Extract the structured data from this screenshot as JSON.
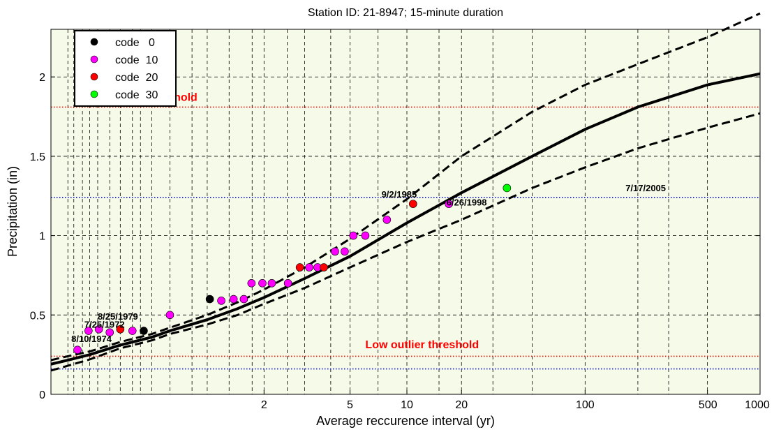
{
  "chart_data": {
    "type": "scatter",
    "title": "Station  ID: 21-8947; 15-minute duration",
    "xlabel": "Average reccurence interval (yr)",
    "ylabel": "Precipitation (in)",
    "xscale": "gumbel-probability",
    "xlim": [
      1.00001,
      1000
    ],
    "ylim": [
      0,
      2.3
    ],
    "grid": true,
    "legend_position": "top-left",
    "background": "#f5fbe8",
    "x_ticks": [
      {
        "value": 2,
        "label": "2"
      },
      {
        "value": 5,
        "label": "5"
      },
      {
        "value": 10,
        "label": "10"
      },
      {
        "value": 20,
        "label": "20"
      },
      {
        "value": 100,
        "label": "100"
      },
      {
        "value": 500,
        "label": "500"
      },
      {
        "value": 1000,
        "label": "1000"
      }
    ],
    "x_minor_grid": [
      1.0001,
      1.0002,
      1.0005,
      1.001,
      1.002,
      1.005,
      1.01,
      1.02,
      1.03,
      1.05,
      1.1,
      1.2,
      1.3,
      1.5,
      1.8,
      2,
      2.5,
      3,
      4,
      5,
      7,
      10,
      15,
      20,
      30,
      50,
      100,
      200,
      300,
      500,
      1000
    ],
    "y_ticks": [
      {
        "value": 0,
        "label": "0"
      },
      {
        "value": 0.5,
        "label": "0.5"
      },
      {
        "value": 1,
        "label": "1"
      },
      {
        "value": 1.5,
        "label": "1.5"
      },
      {
        "value": 2,
        "label": "2"
      }
    ],
    "legend": [
      {
        "label": "code   0",
        "color": "#000000"
      },
      {
        "label": "code  10",
        "color": "#ff00ff"
      },
      {
        "label": "code  20",
        "color": "#ff0000"
      },
      {
        "label": "code  30",
        "color": "#00ff00"
      }
    ],
    "thresholds": [
      {
        "label": "High outlier threshold",
        "y": 1.81,
        "color": "#ff0000",
        "label_x": 1.00045,
        "label_y": 1.85
      },
      {
        "label": "",
        "y": 1.24,
        "color": "#0000ff"
      },
      {
        "label": "Low outlier threshold",
        "y": 0.24,
        "color": "#ff0000",
        "label_x": 6,
        "label_y": 0.29
      },
      {
        "label": "",
        "y": 0.16,
        "color": "#0000ff"
      }
    ],
    "fit_curve": {
      "x": [
        1.00001,
        1.0001,
        1.001,
        1.01,
        1.05,
        1.1,
        1.3,
        1.6,
        2,
        3,
        5,
        10,
        20,
        50,
        100,
        200,
        500,
        1000
      ],
      "y": [
        0.19,
        0.215,
        0.25,
        0.31,
        0.36,
        0.4,
        0.47,
        0.54,
        0.61,
        0.73,
        0.87,
        1.08,
        1.27,
        1.5,
        1.67,
        1.81,
        1.95,
        2.02
      ]
    },
    "upper_bound": {
      "x": [
        1.00001,
        1.0001,
        1.001,
        1.01,
        1.05,
        1.1,
        1.3,
        1.6,
        2,
        3,
        5,
        10,
        20,
        50,
        100,
        200,
        500,
        1000
      ],
      "y": [
        0.215,
        0.24,
        0.27,
        0.33,
        0.38,
        0.42,
        0.5,
        0.58,
        0.66,
        0.8,
        0.98,
        1.23,
        1.5,
        1.78,
        1.95,
        2.08,
        2.25,
        2.4
      ]
    },
    "lower_bound": {
      "x": [
        1.00001,
        1.0001,
        1.001,
        1.01,
        1.05,
        1.1,
        1.3,
        1.6,
        2,
        3,
        5,
        10,
        20,
        50,
        100,
        200,
        500,
        1000
      ],
      "y": [
        0.15,
        0.18,
        0.22,
        0.29,
        0.34,
        0.38,
        0.44,
        0.5,
        0.57,
        0.67,
        0.8,
        0.96,
        1.1,
        1.3,
        1.43,
        1.55,
        1.68,
        1.77
      ]
    },
    "points": [
      {
        "x": 1.0003,
        "y": 0.28,
        "code": 10
      },
      {
        "x": 1.0009,
        "y": 0.4,
        "code": 10
      },
      {
        "x": 1.0022,
        "y": 0.41,
        "code": 10
      },
      {
        "x": 1.005,
        "y": 0.39,
        "code": 10
      },
      {
        "x": 1.01,
        "y": 0.41,
        "code": 20
      },
      {
        "x": 1.02,
        "y": 0.4,
        "code": 10
      },
      {
        "x": 1.035,
        "y": 0.4,
        "code": 0
      },
      {
        "x": 1.1,
        "y": 0.5,
        "code": 10
      },
      {
        "x": 1.32,
        "y": 0.6,
        "code": 0
      },
      {
        "x": 1.42,
        "y": 0.59,
        "code": 10
      },
      {
        "x": 1.55,
        "y": 0.6,
        "code": 10
      },
      {
        "x": 1.68,
        "y": 0.6,
        "code": 10
      },
      {
        "x": 1.79,
        "y": 0.7,
        "code": 10
      },
      {
        "x": 1.97,
        "y": 0.7,
        "code": 10
      },
      {
        "x": 2.15,
        "y": 0.7,
        "code": 10
      },
      {
        "x": 2.52,
        "y": 0.7,
        "code": 10
      },
      {
        "x": 2.85,
        "y": 0.8,
        "code": 20
      },
      {
        "x": 3.15,
        "y": 0.8,
        "code": 10
      },
      {
        "x": 3.45,
        "y": 0.8,
        "code": 10
      },
      {
        "x": 3.7,
        "y": 0.8,
        "code": 20
      },
      {
        "x": 4.2,
        "y": 0.9,
        "code": 10
      },
      {
        "x": 4.7,
        "y": 0.9,
        "code": 10
      },
      {
        "x": 5.2,
        "y": 1.0,
        "code": 10
      },
      {
        "x": 6.0,
        "y": 1.0,
        "code": 10
      },
      {
        "x": 7.8,
        "y": 1.1,
        "code": 10
      },
      {
        "x": 10.8,
        "y": 1.2,
        "code": 20
      },
      {
        "x": 17.0,
        "y": 1.2,
        "code": 10
      },
      {
        "x": 36.0,
        "y": 1.3,
        "code": 30
      }
    ],
    "annotations": [
      {
        "text": "8/10/1974",
        "x": 1.00015,
        "y": 0.33
      },
      {
        "text": "7/25/1972",
        "x": 1.0006,
        "y": 0.42
      },
      {
        "text": "8/25/1979",
        "x": 1.002,
        "y": 0.47
      },
      {
        "text": "9/2/1985",
        "x": 7.3,
        "y": 1.24
      },
      {
        "text": "6/26/1998",
        "x": 16.5,
        "y": 1.19
      },
      {
        "text": "7/17/2005",
        "x": 170,
        "y": 1.28
      }
    ]
  }
}
